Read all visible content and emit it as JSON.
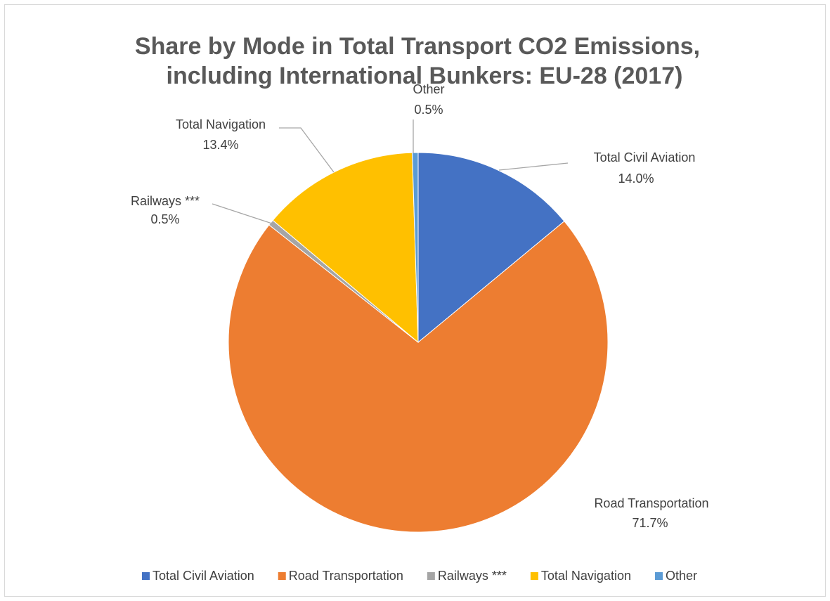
{
  "chart_data": {
    "type": "pie",
    "title": [
      "Share by Mode in Total Transport CO2 Emissions,",
      "including International Bunkers: EU-28 (2017)"
    ],
    "categories": [
      "Total Civil Aviation",
      "Road Transportation",
      "Railways ***",
      "Total Navigation",
      "Other"
    ],
    "values": [
      14.0,
      71.7,
      0.5,
      13.4,
      0.5
    ],
    "value_labels": [
      "14.0%",
      "71.7%",
      "0.5%",
      "13.4%",
      "0.5%"
    ],
    "colors": [
      "#4472c4",
      "#ed7d31",
      "#a5a5a5",
      "#ffc000",
      "#5b9bd5"
    ],
    "legend": "bottom"
  }
}
